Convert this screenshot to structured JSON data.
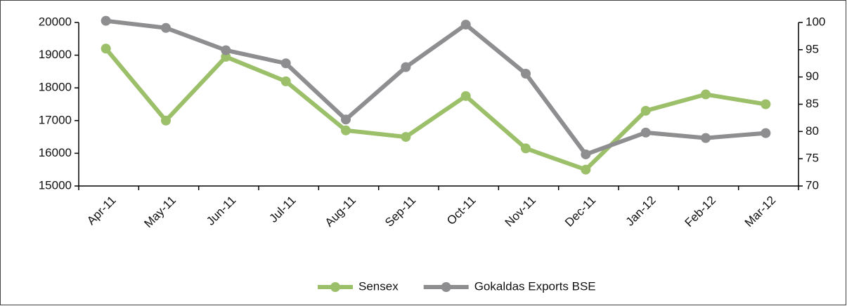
{
  "chart_data": {
    "type": "line",
    "categories": [
      "Apr-11",
      "May-11",
      "Jun-11",
      "Jul-11",
      "Aug-11",
      "Sep-11",
      "Oct-11",
      "Nov-11",
      "Dec-11",
      "Jan-12",
      "Feb-12",
      "Mar-12"
    ],
    "series": [
      {
        "name": "Sensex",
        "color": "#9cbf6a",
        "values": [
          19200,
          17000,
          18950,
          18200,
          16700,
          16500,
          17750,
          16150,
          15500,
          17300,
          17800,
          17500
        ]
      },
      {
        "name": "Gokaldas Exports BSE",
        "color": "#8e8e91",
        "axis": "y2",
        "values": [
          100.3,
          99,
          94.9,
          92.5,
          82.2,
          91.8,
          99.6,
          90.6,
          75.8,
          79.8,
          78.8,
          79.7
        ]
      }
    ],
    "ylim": [
      15000,
      20000
    ],
    "yticks": [
      15000,
      16000,
      17000,
      18000,
      19000,
      20000
    ],
    "y2lim": [
      70,
      100
    ],
    "y2ticks": [
      70,
      75,
      80,
      85,
      90,
      95,
      100
    ],
    "legend": "bottom"
  }
}
